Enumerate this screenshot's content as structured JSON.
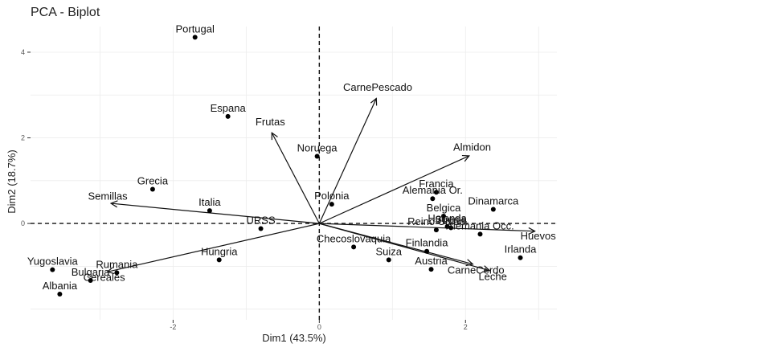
{
  "chart_data": {
    "type": "scatter",
    "title": "PCA - Biplot",
    "xlabel": "Dim1 (43.5%)",
    "ylabel": "Dim2 (18.7%)",
    "xlim": [
      -3.95,
      3.25
    ],
    "ylim": [
      -2.25,
      4.6
    ],
    "xticks": [
      -2,
      0,
      2
    ],
    "yticks": [
      0,
      2,
      4
    ],
    "grid": true,
    "points": [
      {
        "label": "Portugal",
        "x": -1.7,
        "y": 4.35
      },
      {
        "label": "Espana",
        "x": -1.25,
        "y": 2.5
      },
      {
        "label": "Noruega",
        "x": -0.03,
        "y": 1.57
      },
      {
        "label": "Grecia",
        "x": -2.28,
        "y": 0.8
      },
      {
        "label": "Italia",
        "x": -1.5,
        "y": 0.3
      },
      {
        "label": "Polonia",
        "x": 0.17,
        "y": 0.45
      },
      {
        "label": "Francia",
        "x": 1.6,
        "y": 0.73
      },
      {
        "label": "Alemania Or.",
        "x": 1.55,
        "y": 0.58
      },
      {
        "label": "Dinamarca",
        "x": 2.38,
        "y": 0.33
      },
      {
        "label": "Belgica",
        "x": 1.7,
        "y": 0.17
      },
      {
        "label": "Reino Unido",
        "x": 1.6,
        "y": -0.15
      },
      {
        "label": "Suecia",
        "x": 1.8,
        "y": -0.1
      },
      {
        "label": "Holanda",
        "x": 1.75,
        "y": -0.07
      },
      {
        "label": "Alemania Occ.",
        "x": 2.2,
        "y": -0.25
      },
      {
        "label": "URSS",
        "x": -0.8,
        "y": -0.12
      },
      {
        "label": "Checoslovaquia",
        "x": 0.47,
        "y": -0.55
      },
      {
        "label": "Finlandia",
        "x": 1.47,
        "y": -0.65
      },
      {
        "label": "Suiza",
        "x": 0.95,
        "y": -0.85
      },
      {
        "label": "Irlanda",
        "x": 2.75,
        "y": -0.8
      },
      {
        "label": "Austria",
        "x": 1.53,
        "y": -1.07
      },
      {
        "label": "Hungria",
        "x": -1.37,
        "y": -0.85
      },
      {
        "label": "Yugoslavia",
        "x": -3.65,
        "y": -1.08
      },
      {
        "label": "Bulgaria",
        "x": -3.13,
        "y": -1.33
      },
      {
        "label": "Rumania",
        "x": -2.77,
        "y": -1.15
      },
      {
        "label": "Albania",
        "x": -3.55,
        "y": -1.65
      }
    ],
    "variables": [
      {
        "label": "CarnePescado",
        "x": 0.78,
        "y": 2.92
      },
      {
        "label": "Frutas",
        "x": -0.65,
        "y": 2.12
      },
      {
        "label": "Almidon",
        "x": 2.05,
        "y": 1.58
      },
      {
        "label": "Semillas",
        "x": -2.85,
        "y": 0.47
      },
      {
        "label": "Huevos",
        "x": 2.95,
        "y": -0.18
      },
      {
        "label": "Leche",
        "x": 2.33,
        "y": -1.1
      },
      {
        "label": "CarneCerdo",
        "x": 2.1,
        "y": -0.95
      },
      {
        "label": "Cereales",
        "x": -2.9,
        "y": -1.13
      }
    ]
  }
}
